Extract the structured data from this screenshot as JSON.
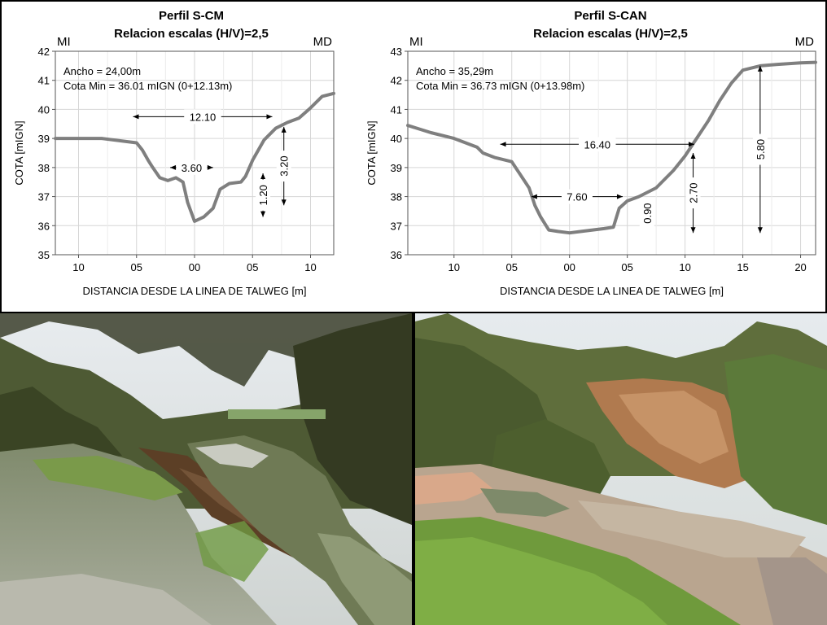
{
  "chart_data": [
    {
      "type": "line",
      "title": "Perfil S-CM",
      "subtitle": "Relacion escalas (H/V)=2,5",
      "left_label": "MI",
      "right_label": "MD",
      "xlabel": "DISTANCIA DESDE LA LINEA DE TALWEG [m]",
      "ylabel": "COTA [mIGN]",
      "xlim": [
        -12,
        12
      ],
      "ylim": [
        35,
        42
      ],
      "xticks": [
        -10,
        -5,
        0,
        5,
        10
      ],
      "xtick_labels": [
        "10",
        "05",
        "00",
        "05",
        "10"
      ],
      "yticks": [
        35,
        36,
        37,
        38,
        39,
        40,
        41,
        42
      ],
      "grid": true,
      "annotations": [
        "Ancho = 24,00m",
        "Cota Min = 36.01 mIGN (0+12.13m)"
      ],
      "series": [
        {
          "x": [
            -12,
            -8,
            -5,
            -4.5,
            -4,
            -3.6,
            -3,
            -2.3,
            -1.6,
            -1,
            -0.6,
            0,
            0.8,
            1.6,
            2.2,
            3,
            4,
            4.4,
            5,
            6,
            7,
            8,
            9,
            10,
            11,
            12
          ],
          "y": [
            39.0,
            39.0,
            38.85,
            38.6,
            38.25,
            38.0,
            37.65,
            37.55,
            37.65,
            37.5,
            36.8,
            36.15,
            36.3,
            36.6,
            37.25,
            37.45,
            37.5,
            37.7,
            38.25,
            38.95,
            39.35,
            39.55,
            39.7,
            40.05,
            40.45,
            40.55
          ]
        }
      ],
      "dimensions": [
        {
          "label": "12.10",
          "orientation": "horizontal",
          "from": -5.3,
          "to": 6.7,
          "at": 39.75
        },
        {
          "label": "3.60",
          "orientation": "horizontal",
          "from": -2.1,
          "to": 1.6,
          "at": 38.0
        },
        {
          "label": "1.20",
          "orientation": "vertical",
          "from": 36.3,
          "to": 37.8,
          "at": 5.9
        },
        {
          "label": "3.20",
          "orientation": "vertical",
          "from": 36.7,
          "to": 39.4,
          "at": 7.7
        }
      ]
    },
    {
      "type": "line",
      "title": "Perfil S-CAN",
      "subtitle": "Relacion escalas (H/V)=2,5",
      "left_label": "MI",
      "right_label": "MD",
      "xlabel": "DISTANCIA DESDE LA LINEA DE TALWEG [m]",
      "ylabel": "COTA [mIGN]",
      "xlim": [
        -14,
        21.3
      ],
      "ylim": [
        36,
        43
      ],
      "xticks": [
        -10,
        -5,
        0,
        5,
        10,
        15,
        20
      ],
      "xtick_labels": [
        "10",
        "05",
        "00",
        "05",
        "10",
        "15",
        "20"
      ],
      "yticks": [
        36,
        37,
        38,
        39,
        40,
        41,
        42,
        43
      ],
      "grid": true,
      "annotations": [
        "Ancho = 35,29m",
        "Cota Min = 36.73 mIGN (0+13.98m)"
      ],
      "series": [
        {
          "x": [
            -14,
            -12,
            -10,
            -8,
            -7.5,
            -6.5,
            -5,
            -4,
            -3.5,
            -3,
            -2.5,
            -1.8,
            -1,
            0,
            1,
            2,
            3,
            3.8,
            4.3,
            5,
            6,
            7.5,
            9,
            10,
            11,
            12,
            13,
            14,
            15,
            16.5,
            18,
            20,
            21.3
          ],
          "y": [
            40.45,
            40.2,
            40.0,
            39.7,
            39.5,
            39.35,
            39.2,
            38.6,
            38.3,
            37.7,
            37.3,
            36.85,
            36.8,
            36.75,
            36.8,
            36.85,
            36.9,
            36.95,
            37.6,
            37.85,
            38.0,
            38.3,
            38.9,
            39.4,
            40.0,
            40.6,
            41.3,
            41.9,
            42.35,
            42.5,
            42.55,
            42.6,
            42.62
          ]
        }
      ],
      "dimensions": [
        {
          "label": "16.40",
          "orientation": "horizontal",
          "from": -6.0,
          "to": 10.8,
          "at": 39.8
        },
        {
          "label": "7.60",
          "orientation": "horizontal",
          "from": -3.3,
          "to": 4.6,
          "at": 38.0
        },
        {
          "label": "0.90",
          "orientation": "vertical",
          "from": 36.9,
          "to": 37.95,
          "at": 6.7
        },
        {
          "label": "2.70",
          "orientation": "vertical",
          "from": 36.75,
          "to": 39.5,
          "at": 10.7
        },
        {
          "label": "5.80",
          "orientation": "vertical",
          "from": 36.75,
          "to": 42.5,
          "at": 16.5
        }
      ]
    }
  ]
}
